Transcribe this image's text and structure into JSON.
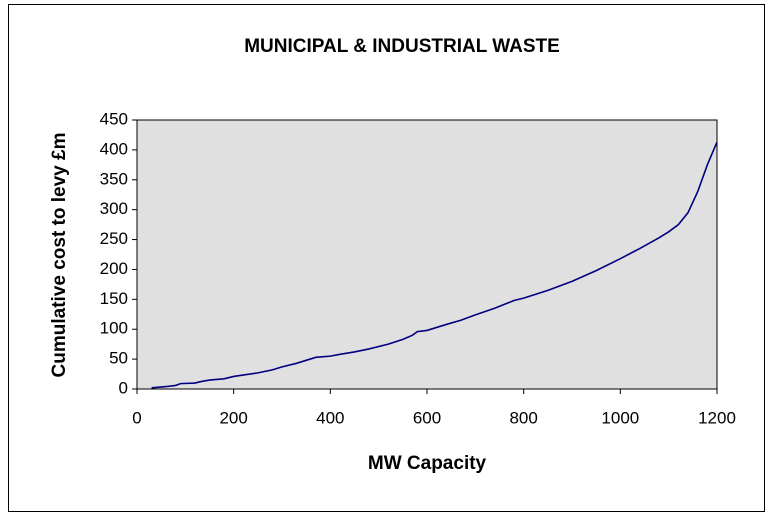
{
  "chart_data": {
    "type": "line",
    "title": "MUNICIPAL & INDUSTRIAL WASTE",
    "x_label": "MW Capacity",
    "y_label": "Cumulative cost to levy £m",
    "series": [
      {
        "name": "Cumulative cost",
        "color": "#000080",
        "x": [
          30,
          60,
          80,
          90,
          120,
          130,
          150,
          180,
          200,
          250,
          280,
          300,
          330,
          350,
          370,
          400,
          420,
          450,
          480,
          520,
          550,
          570,
          580,
          600,
          640,
          670,
          700,
          740,
          780,
          800,
          850,
          900,
          950,
          1000,
          1040,
          1080,
          1100,
          1120,
          1140,
          1160,
          1180,
          1200
        ],
        "values": [
          2,
          4,
          6,
          9,
          10,
          12,
          15,
          17,
          21,
          27,
          32,
          37,
          43,
          48,
          53,
          55,
          58,
          62,
          67,
          75,
          83,
          90,
          96,
          98,
          108,
          115,
          124,
          135,
          148,
          152,
          165,
          180,
          198,
          218,
          235,
          253,
          263,
          275,
          295,
          330,
          375,
          413
        ]
      }
    ],
    "xlim": [
      0,
      1200
    ],
    "xticks": [
      0,
      200,
      400,
      600,
      800,
      1000,
      1200
    ],
    "ylim": [
      0,
      450
    ],
    "yticks": [
      0,
      50,
      100,
      150,
      200,
      250,
      300,
      350,
      400,
      450
    ],
    "plot_background": "#e0e0e0",
    "grid": false
  }
}
